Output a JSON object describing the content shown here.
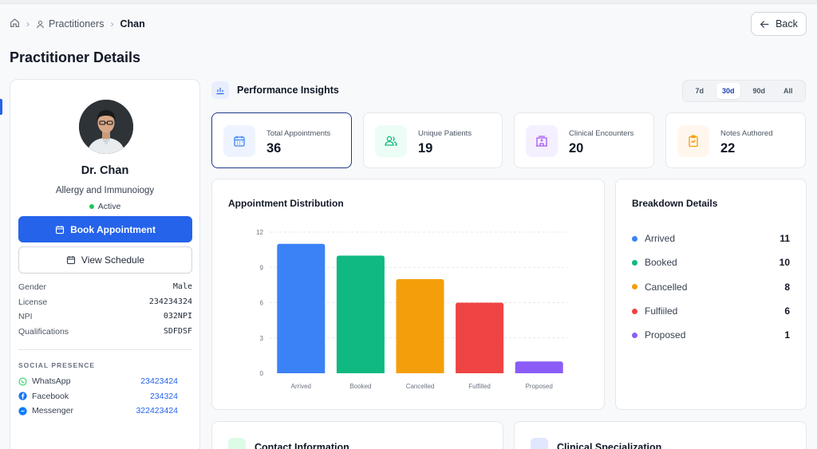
{
  "breadcrumb": {
    "items": [
      "Practitioners",
      "Chan"
    ]
  },
  "header": {
    "back_label": "Back",
    "title": "Practitioner Details"
  },
  "profile": {
    "name": "Dr. Chan",
    "specialty": "Allergy and Immunoiogy",
    "status": "Active",
    "book_label": "Book Appointment",
    "schedule_label": "View Schedule",
    "details": [
      {
        "label": "Gender",
        "value": "Male"
      },
      {
        "label": "License",
        "value": "234234324"
      },
      {
        "label": "NPI",
        "value": "032NPI"
      },
      {
        "label": "Qualifications",
        "value": "SDFDSF"
      }
    ],
    "social_title": "SOCIAL PRESENCE",
    "social": [
      {
        "name": "WhatsApp",
        "value": "23423424",
        "color": "#25D366"
      },
      {
        "name": "Facebook",
        "value": "234324",
        "color": "#1877F2"
      },
      {
        "name": "Messenger",
        "value": "322423424",
        "color": "#0A7CFF"
      }
    ]
  },
  "insights": {
    "title": "Performance Insights",
    "ranges": [
      "7d",
      "30d",
      "90d",
      "All"
    ],
    "active_range": "30d",
    "stats": [
      {
        "label": "Total Appointments",
        "value": "36",
        "icon": "calendar-icon",
        "color": "#3b82f6",
        "bg": "#eef4ff"
      },
      {
        "label": "Unique Patients",
        "value": "19",
        "icon": "users-icon",
        "color": "#10b981",
        "bg": "#ecfdf5"
      },
      {
        "label": "Clinical Encounters",
        "value": "20",
        "icon": "hospital-icon",
        "color": "#a855f7",
        "bg": "#f5f0ff"
      },
      {
        "label": "Notes Authored",
        "value": "22",
        "icon": "clipboard-icon",
        "color": "#f59e0b",
        "bg": "#fff7ed"
      }
    ]
  },
  "chart": {
    "title": "Appointment Distribution"
  },
  "chart_data": {
    "type": "bar",
    "categories": [
      "Arrived",
      "Booked",
      "Cancelled",
      "Fulfilled",
      "Proposed"
    ],
    "values": [
      11,
      10,
      8,
      6,
      1
    ],
    "colors": [
      "#3b82f6",
      "#10b981",
      "#f59e0b",
      "#ef4444",
      "#8b5cf6"
    ],
    "yticks": [
      0,
      3,
      6,
      9,
      12
    ],
    "ylim": [
      0,
      12
    ],
    "grid": true
  },
  "breakdown": {
    "title": "Breakdown Details",
    "items": [
      {
        "label": "Arrived",
        "value": "11",
        "color": "#3b82f6"
      },
      {
        "label": "Booked",
        "value": "10",
        "color": "#10b981"
      },
      {
        "label": "Cancelled",
        "value": "8",
        "color": "#f59e0b"
      },
      {
        "label": "Fulfiiled",
        "value": "6",
        "color": "#ef4444"
      },
      {
        "label": "Proposed",
        "value": "1",
        "color": "#8b5cf6"
      }
    ]
  },
  "bottom": {
    "contact_title": "Contact Information",
    "specialization_title": "Clinical Specialization"
  }
}
